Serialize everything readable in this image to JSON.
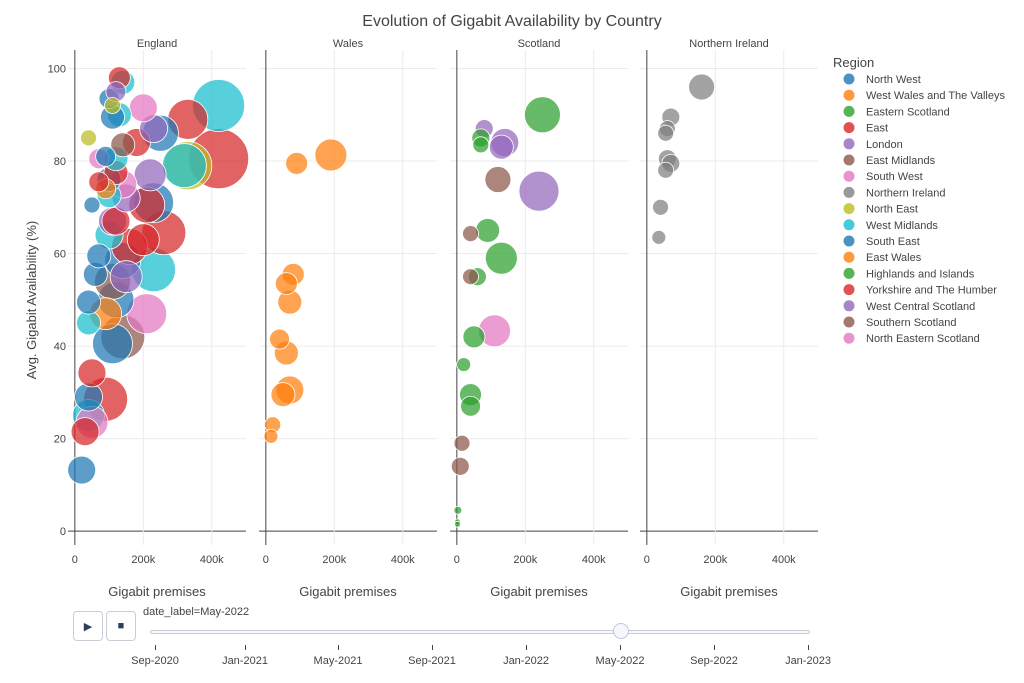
{
  "chart_data": {
    "type": "scatter",
    "subtype": "bubble",
    "title": "Evolution of Gigabit Availability by Country",
    "ylabel": "Avg. Gigabit Availability (%)",
    "xlabel": "Gigabit premises",
    "xlim": [
      -20000,
      500000
    ],
    "ylim": [
      -3,
      104
    ],
    "yticks": [
      0,
      20,
      40,
      60,
      80,
      100
    ],
    "xticks": [
      0,
      200000,
      400000
    ],
    "xtick_labels": [
      "0",
      "200k",
      "400k"
    ],
    "grid": true,
    "legend": {
      "title": "Region",
      "placement": "right"
    },
    "facets": [
      {
        "name": "England",
        "points": [
          {
            "r": "North West",
            "x": 20000,
            "y": 13.2,
            "s": 14
          },
          {
            "r": "East",
            "x": 30000,
            "y": 21.5,
            "s": 14
          },
          {
            "r": "West Midlands",
            "x": 40000,
            "y": 25,
            "s": 16
          },
          {
            "r": "South West",
            "x": 50000,
            "y": 23.5,
            "s": 16
          },
          {
            "r": "East",
            "x": 90000,
            "y": 28.5,
            "s": 22
          },
          {
            "r": "North West",
            "x": 40000,
            "y": 29,
            "s": 14
          },
          {
            "r": "East",
            "x": 50000,
            "y": 34.2,
            "s": 14
          },
          {
            "r": "East Midlands",
            "x": 140000,
            "y": 42,
            "s": 22
          },
          {
            "r": "South East",
            "x": 110000,
            "y": 40.5,
            "s": 20
          },
          {
            "r": "South West",
            "x": 210000,
            "y": 47,
            "s": 20
          },
          {
            "r": "West Midlands",
            "x": 40000,
            "y": 45,
            "s": 12
          },
          {
            "r": "West Wales and The Valleys",
            "x": 90000,
            "y": 47,
            "s": 16
          },
          {
            "r": "North West",
            "x": 40000,
            "y": 49.5,
            "s": 12
          },
          {
            "r": "South East",
            "x": 120000,
            "y": 50,
            "s": 18
          },
          {
            "r": "West Midlands",
            "x": 230000,
            "y": 56.5,
            "s": 22
          },
          {
            "r": "London",
            "x": 150000,
            "y": 55,
            "s": 16
          },
          {
            "r": "South East",
            "x": 60000,
            "y": 55.5,
            "s": 12
          },
          {
            "r": "East Midlands",
            "x": 110000,
            "y": 54,
            "s": 18
          },
          {
            "r": "South East",
            "x": 140000,
            "y": 58.5,
            "s": 18
          },
          {
            "r": "South East",
            "x": 70000,
            "y": 59.5,
            "s": 12
          },
          {
            "r": "Yorkshire and The Humber",
            "x": 160000,
            "y": 61.5,
            "s": 18
          },
          {
            "r": "Yorkshire and The Humber",
            "x": 260000,
            "y": 64.5,
            "s": 22
          },
          {
            "r": "East",
            "x": 200000,
            "y": 63,
            "s": 16
          },
          {
            "r": "West Midlands",
            "x": 100000,
            "y": 64,
            "s": 14
          },
          {
            "r": "London",
            "x": 110000,
            "y": 67,
            "s": 14
          },
          {
            "r": "East",
            "x": 120000,
            "y": 67,
            "s": 14
          },
          {
            "r": "North West",
            "x": 230000,
            "y": 71,
            "s": 20
          },
          {
            "r": "East",
            "x": 210000,
            "y": 70.5,
            "s": 18
          },
          {
            "r": "North West",
            "x": 50000,
            "y": 70.5,
            "s": 8
          },
          {
            "r": "London",
            "x": 150000,
            "y": 72,
            "s": 14
          },
          {
            "r": "West Midlands",
            "x": 100000,
            "y": 72.5,
            "s": 12
          },
          {
            "r": "West Wales and The Valleys",
            "x": 90000,
            "y": 74,
            "s": 10
          },
          {
            "r": "South West",
            "x": 140000,
            "y": 75,
            "s": 14
          },
          {
            "r": "East",
            "x": 70000,
            "y": 75.5,
            "s": 10
          },
          {
            "r": "North West",
            "x": 100000,
            "y": 76,
            "s": 12
          },
          {
            "r": "East",
            "x": 120000,
            "y": 77.5,
            "s": 12
          },
          {
            "r": "London",
            "x": 220000,
            "y": 77,
            "s": 16
          },
          {
            "r": "North East",
            "x": 330000,
            "y": 79,
            "s": 24
          },
          {
            "r": "West Midlands",
            "x": 320000,
            "y": 79,
            "s": 22
          },
          {
            "r": "East",
            "x": 420000,
            "y": 80.5,
            "s": 30
          },
          {
            "r": "South West",
            "x": 70000,
            "y": 80.5,
            "s": 10
          },
          {
            "r": "North West",
            "x": 90000,
            "y": 81,
            "s": 10
          },
          {
            "r": "West Midlands",
            "x": 120000,
            "y": 80.5,
            "s": 12
          },
          {
            "r": "East",
            "x": 180000,
            "y": 84,
            "s": 14
          },
          {
            "r": "East Midlands",
            "x": 140000,
            "y": 83.5,
            "s": 12
          },
          {
            "r": "North West",
            "x": 250000,
            "y": 86,
            "s": 18
          },
          {
            "r": "London",
            "x": 230000,
            "y": 87,
            "s": 14
          },
          {
            "r": "North East",
            "x": 40000,
            "y": 85,
            "s": 8
          },
          {
            "r": "East",
            "x": 330000,
            "y": 89,
            "s": 20
          },
          {
            "r": "West Midlands",
            "x": 420000,
            "y": 92,
            "s": 26
          },
          {
            "r": "South West",
            "x": 200000,
            "y": 91.5,
            "s": 14
          },
          {
            "r": "West Midlands",
            "x": 130000,
            "y": 90,
            "s": 12
          },
          {
            "r": "North West",
            "x": 110000,
            "y": 89.5,
            "s": 12
          },
          {
            "r": "North East",
            "x": 110000,
            "y": 92,
            "s": 8
          },
          {
            "r": "West Midlands",
            "x": 140000,
            "y": 97,
            "s": 12
          },
          {
            "r": "East",
            "x": 130000,
            "y": 98,
            "s": 11
          },
          {
            "r": "North West",
            "x": 100000,
            "y": 93.5,
            "s": 10
          },
          {
            "r": "London",
            "x": 120000,
            "y": 95,
            "s": 10
          }
        ]
      },
      {
        "name": "Wales",
        "points": [
          {
            "r": "West Wales and The Valleys",
            "x": 190000,
            "y": 81.3,
            "s": 16
          },
          {
            "r": "East Wales",
            "x": 90000,
            "y": 79.5,
            "s": 11
          },
          {
            "r": "West Wales and The Valleys",
            "x": 80000,
            "y": 55.5,
            "s": 11
          },
          {
            "r": "East Wales",
            "x": 60000,
            "y": 53.5,
            "s": 11
          },
          {
            "r": "West Wales and The Valleys",
            "x": 70000,
            "y": 49.5,
            "s": 12
          },
          {
            "r": "East Wales",
            "x": 40000,
            "y": 41.5,
            "s": 10
          },
          {
            "r": "West Wales and The Valleys",
            "x": 60000,
            "y": 38.5,
            "s": 12
          },
          {
            "r": "West Wales and The Valleys",
            "x": 70000,
            "y": 30.5,
            "s": 14
          },
          {
            "r": "East Wales",
            "x": 50000,
            "y": 29.5,
            "s": 12
          },
          {
            "r": "East Wales",
            "x": 20000,
            "y": 23,
            "s": 8
          },
          {
            "r": "West Wales and The Valleys",
            "x": 15000,
            "y": 20.5,
            "s": 7
          }
        ]
      },
      {
        "name": "Scotland",
        "points": [
          {
            "r": "Eastern Scotland",
            "x": 250000,
            "y": 90,
            "s": 18
          },
          {
            "r": "West Central Scotland",
            "x": 80000,
            "y": 87,
            "s": 9
          },
          {
            "r": "Highlands and Islands",
            "x": 70000,
            "y": 85,
            "s": 9
          },
          {
            "r": "Highlands and Islands",
            "x": 70000,
            "y": 83.5,
            "s": 8
          },
          {
            "r": "West Central Scotland",
            "x": 140000,
            "y": 84,
            "s": 14
          },
          {
            "r": "West Central Scotland",
            "x": 130000,
            "y": 83,
            "s": 12
          },
          {
            "r": "Southern Scotland",
            "x": 120000,
            "y": 76,
            "s": 13
          },
          {
            "r": "West Central Scotland",
            "x": 240000,
            "y": 73.5,
            "s": 20
          },
          {
            "r": "Highlands and Islands",
            "x": 90000,
            "y": 65,
            "s": 12
          },
          {
            "r": "Southern Scotland",
            "x": 40000,
            "y": 64.3,
            "s": 8
          },
          {
            "r": "Highlands and Islands",
            "x": 130000,
            "y": 59,
            "s": 16
          },
          {
            "r": "Highlands and Islands",
            "x": 60000,
            "y": 55,
            "s": 9
          },
          {
            "r": "Southern Scotland",
            "x": 40000,
            "y": 55,
            "s": 8
          },
          {
            "r": "North Eastern Scotland",
            "x": 110000,
            "y": 43.3,
            "s": 16
          },
          {
            "r": "Highlands and Islands",
            "x": 50000,
            "y": 42,
            "s": 11
          },
          {
            "r": "Highlands and Islands",
            "x": 20000,
            "y": 36,
            "s": 7
          },
          {
            "r": "Highlands and Islands",
            "x": 40000,
            "y": 29.5,
            "s": 11
          },
          {
            "r": "Highlands and Islands",
            "x": 40000,
            "y": 27,
            "s": 10
          },
          {
            "r": "Southern Scotland",
            "x": 15000,
            "y": 19,
            "s": 8
          },
          {
            "r": "Southern Scotland",
            "x": 10000,
            "y": 14,
            "s": 9
          },
          {
            "r": "Highlands and Islands",
            "x": 3000,
            "y": 4.5,
            "s": 4
          },
          {
            "r": "Highlands and Islands",
            "x": 2000,
            "y": 2,
            "s": 3
          },
          {
            "r": "Highlands and Islands",
            "x": 2000,
            "y": 1.5,
            "s": 3
          }
        ]
      },
      {
        "name": "Northern Ireland",
        "points": [
          {
            "r": "Northern Ireland",
            "x": 160000,
            "y": 96,
            "s": 13
          },
          {
            "r": "Northern Ireland",
            "x": 70000,
            "y": 89.5,
            "s": 9
          },
          {
            "r": "Northern Ireland",
            "x": 60000,
            "y": 87,
            "s": 8
          },
          {
            "r": "Northern Ireland",
            "x": 55000,
            "y": 86,
            "s": 8
          },
          {
            "r": "Northern Ireland",
            "x": 60000,
            "y": 80.5,
            "s": 9
          },
          {
            "r": "Northern Ireland",
            "x": 70000,
            "y": 79.5,
            "s": 9
          },
          {
            "r": "Northern Ireland",
            "x": 55000,
            "y": 78,
            "s": 8
          },
          {
            "r": "Northern Ireland",
            "x": 40000,
            "y": 70,
            "s": 8
          },
          {
            "r": "Northern Ireland",
            "x": 35000,
            "y": 63.5,
            "s": 7
          }
        ]
      }
    ]
  },
  "regions": [
    {
      "name": "North West",
      "color": "#1f77b4"
    },
    {
      "name": "West Wales and The Valleys",
      "color": "#ff7f0e"
    },
    {
      "name": "Eastern Scotland",
      "color": "#2ca02c"
    },
    {
      "name": "East",
      "color": "#d62728"
    },
    {
      "name": "London",
      "color": "#9467bd"
    },
    {
      "name": "East Midlands",
      "color": "#8c564b"
    },
    {
      "name": "South West",
      "color": "#e377c2"
    },
    {
      "name": "Northern Ireland",
      "color": "#7f7f7f"
    },
    {
      "name": "North East",
      "color": "#bcbd22"
    },
    {
      "name": "West Midlands",
      "color": "#17becf"
    },
    {
      "name": "South East",
      "color": "#1f77b4"
    },
    {
      "name": "East Wales",
      "color": "#ff7f0e"
    },
    {
      "name": "Highlands and Islands",
      "color": "#2ca02c"
    },
    {
      "name": "Yorkshire and The Humber",
      "color": "#d62728"
    },
    {
      "name": "West Central Scotland",
      "color": "#9467bd"
    },
    {
      "name": "Southern Scotland",
      "color": "#8c564b"
    },
    {
      "name": "North Eastern Scotland",
      "color": "#e377c2"
    }
  ],
  "controls": {
    "play_icon": "play-icon",
    "play_glyph": "▶",
    "stop_icon": "stop-icon",
    "stop_glyph": "■",
    "slider_label": "date_label=May-2022",
    "slider_value": 0.714,
    "slider_steps": [
      "Sep-2020",
      "Jan-2021",
      "May-2021",
      "Sep-2021",
      "Jan-2022",
      "May-2022",
      "Sep-2022",
      "Jan-2023"
    ]
  }
}
